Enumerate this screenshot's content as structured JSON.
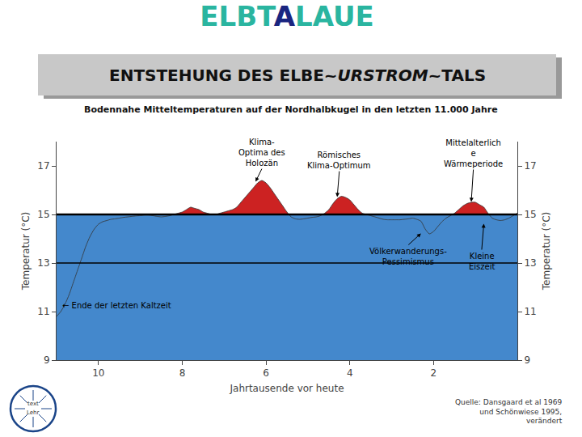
{
  "chart_data": {
    "type": "area",
    "title": "ELBTALAUE",
    "title_colors": [
      "#2ab5a0",
      "#2ab5a0",
      "#2ab5a0",
      "#2ab5a0",
      "#1a2580",
      "#2ab5a0",
      "#2ab5a0",
      "#2ab5a0",
      "#2ab5a0"
    ],
    "subtitle": "ENTSTEHUNG DES ELBE~URSTROM~TALS",
    "subtitle_italic": "URSTROM",
    "subtitle_box_color": "#c8c8c8",
    "chart_title": "Bodennahe Mitteltemperaturen auf der Nordhalbkugel in den letzten 11.000 Jahre",
    "background_color": "#ffffff",
    "xlabel": "Jahrtausende vor heute",
    "ylabel": "Temperatur (°C)",
    "y2label": "Temperatur (°C)",
    "xlim": [
      11,
      0
    ],
    "xticks": [
      10,
      8,
      6,
      4,
      2
    ],
    "ylim": [
      9,
      18
    ],
    "yticks": [
      9,
      11,
      13,
      15,
      17
    ],
    "y2lim": [
      9,
      18
    ],
    "y2ticks": [
      9,
      11,
      13,
      15,
      17
    ],
    "grid": false,
    "baseline": 15,
    "reference_lines": [
      15,
      13
    ],
    "fill_above_color": "#cc2222",
    "fill_below_color": "#4488cc",
    "x": [
      11.0,
      10.9,
      10.8,
      10.7,
      10.6,
      10.5,
      10.4,
      10.3,
      10.2,
      10.1,
      10.0,
      9.9,
      9.8,
      9.7,
      9.6,
      9.5,
      9.4,
      9.3,
      9.2,
      9.1,
      9.0,
      8.9,
      8.8,
      8.7,
      8.6,
      8.5,
      8.4,
      8.3,
      8.2,
      8.1,
      8.0,
      7.9,
      7.8,
      7.7,
      7.6,
      7.5,
      7.4,
      7.3,
      7.2,
      7.1,
      7.0,
      6.9,
      6.8,
      6.7,
      6.6,
      6.5,
      6.4,
      6.3,
      6.2,
      6.1,
      6.0,
      5.9,
      5.8,
      5.7,
      5.6,
      5.5,
      5.4,
      5.3,
      5.2,
      5.1,
      5.0,
      4.9,
      4.8,
      4.7,
      4.6,
      4.5,
      4.4,
      4.3,
      4.2,
      4.1,
      4.0,
      3.9,
      3.8,
      3.7,
      3.6,
      3.5,
      3.4,
      3.3,
      3.2,
      3.1,
      3.0,
      2.9,
      2.8,
      2.7,
      2.6,
      2.5,
      2.4,
      2.3,
      2.2,
      2.1,
      2.0,
      1.9,
      1.8,
      1.7,
      1.6,
      1.5,
      1.4,
      1.3,
      1.2,
      1.1,
      1.0,
      0.9,
      0.8,
      0.7,
      0.6,
      0.5,
      0.4,
      0.3,
      0.2,
      0.1,
      0.0
    ],
    "values": [
      10.8,
      11.0,
      11.3,
      11.7,
      12.2,
      12.7,
      13.2,
      13.7,
      14.1,
      14.4,
      14.6,
      14.7,
      14.75,
      14.8,
      14.82,
      14.85,
      14.88,
      14.9,
      14.92,
      14.94,
      14.95,
      14.97,
      14.97,
      14.95,
      14.92,
      14.9,
      14.92,
      14.95,
      15.0,
      15.05,
      15.1,
      15.2,
      15.3,
      15.25,
      15.2,
      15.1,
      15.05,
      15.0,
      15.0,
      15.05,
      15.1,
      15.15,
      15.2,
      15.3,
      15.5,
      15.7,
      15.9,
      16.1,
      16.3,
      16.4,
      16.3,
      16.1,
      15.85,
      15.6,
      15.35,
      15.1,
      14.9,
      14.82,
      14.8,
      14.82,
      14.85,
      14.88,
      14.9,
      14.95,
      15.05,
      15.2,
      15.45,
      15.65,
      15.75,
      15.7,
      15.6,
      15.4,
      15.2,
      15.05,
      15.0,
      14.95,
      14.9,
      14.85,
      14.8,
      14.78,
      14.78,
      14.78,
      14.78,
      14.8,
      14.82,
      14.85,
      14.8,
      14.72,
      14.4,
      14.2,
      14.3,
      14.5,
      14.7,
      14.85,
      14.95,
      15.05,
      15.2,
      15.35,
      15.45,
      15.5,
      15.5,
      15.4,
      15.3,
      15.05,
      14.85,
      14.78,
      14.75,
      14.78,
      14.85,
      14.95,
      15.05
    ],
    "annotations": [
      {
        "text": "Klima-\nOptima des\nHolozän",
        "x": 6.25,
        "y": 16.35,
        "text_x": 6.1,
        "text_y": 16.88
      },
      {
        "text": "Römisches\nKlima-Optimum",
        "x": 4.3,
        "y": 15.72,
        "text_x": 4.25,
        "text_y": 16.78
      },
      {
        "text": "Mittelalterlich\ne\nWärmeperiode",
        "x": 1.1,
        "y": 15.52,
        "text_x": 1.05,
        "text_y": 16.85
      },
      {
        "text": "Völkerwanderungs-\nPessimismus",
        "x": 2.3,
        "y": 14.22,
        "text_x": 2.6,
        "text_y": 13.75
      },
      {
        "text": "Kleine\nEiszeit",
        "x": 0.8,
        "y": 14.62,
        "text_x": 0.85,
        "text_y": 13.55
      },
      {
        "text": "← Ende der letzten Kaltzeit",
        "text_x": 10.9,
        "text_y": 11.25
      }
    ],
    "source": "Quelle: Dansgaard et al 1969\nund Schönwiese 1995,\nverändert",
    "logo_texts": [
      "text",
      "Lehr"
    ]
  }
}
